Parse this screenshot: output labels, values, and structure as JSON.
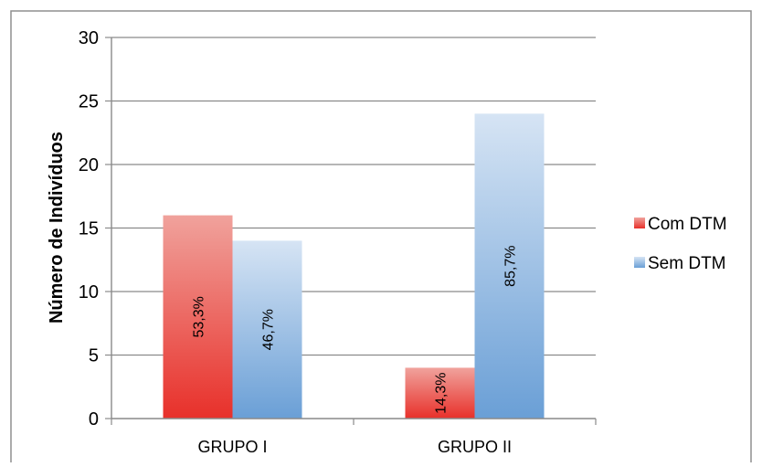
{
  "chart_data": {
    "type": "bar",
    "title": "",
    "ylabel": "Número de Indivíduos",
    "xlabel": "",
    "ylim": [
      0,
      30
    ],
    "yticks": [
      0,
      5,
      10,
      15,
      20,
      25,
      30
    ],
    "categories": [
      "GRUPO I",
      "GRUPO II"
    ],
    "series": [
      {
        "name": "Com DTM",
        "values": [
          16,
          4
        ],
        "labels": [
          "53,3%",
          "14,3%"
        ],
        "color": "#e8302a",
        "color_light": "#f0a29c"
      },
      {
        "name": "Sem DTM",
        "values": [
          14,
          24
        ],
        "labels": [
          "46,7%",
          "85,7%"
        ],
        "color": "#6a9fd6",
        "color_light": "#d6e4f4"
      }
    ],
    "grid": true,
    "legend_position": "right"
  }
}
